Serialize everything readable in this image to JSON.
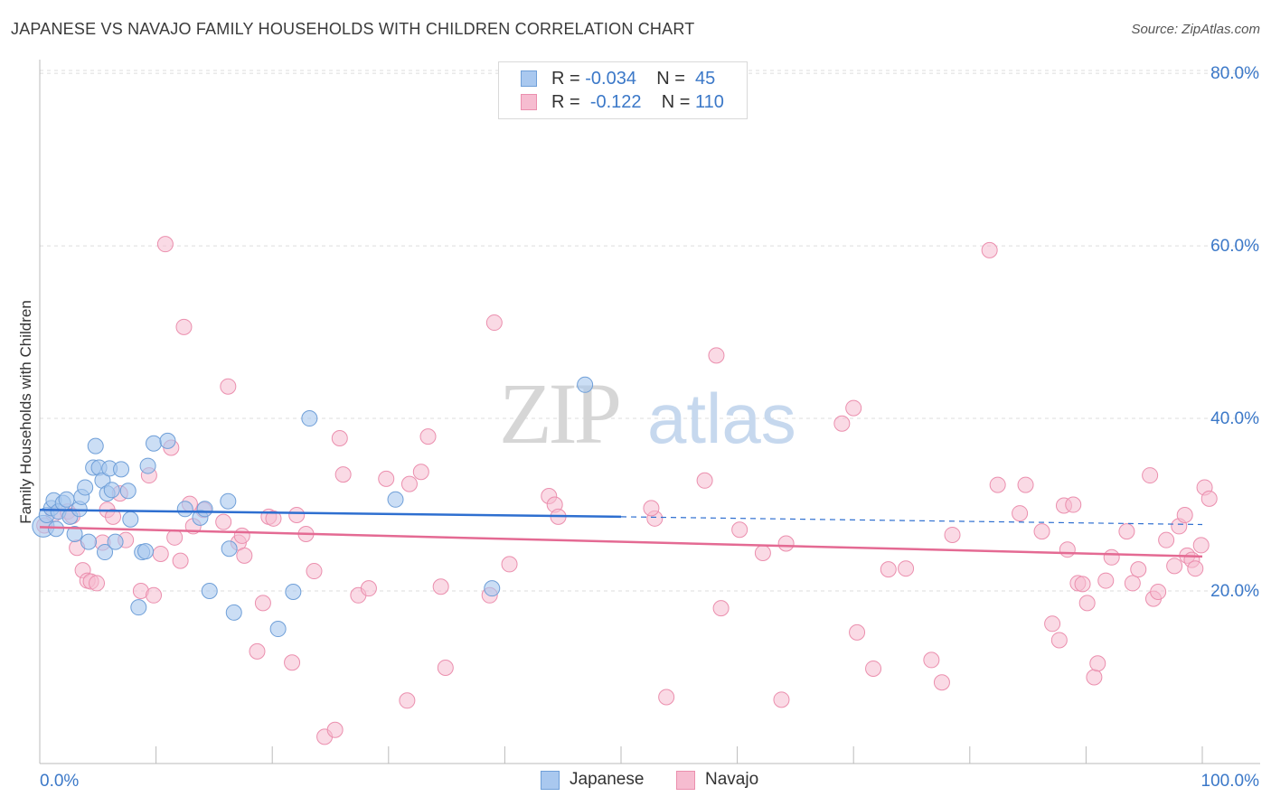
{
  "header": {
    "title": "JAPANESE VS NAVAJO FAMILY HOUSEHOLDS WITH CHILDREN CORRELATION CHART",
    "source": "Source: ZipAtlas.com"
  },
  "watermark": {
    "zip": "ZIP",
    "atlas": "atlas"
  },
  "legend": {
    "japanese": {
      "r_label": "R =",
      "r_value": "-0.034",
      "n_label": "N =",
      "n_value": "45"
    },
    "navajo": {
      "r_label": "R =",
      "r_value": "-0.122",
      "n_label": "N =",
      "n_value": "110"
    }
  },
  "colors": {
    "japanese_fill": "#a9c8ef",
    "japanese_stroke": "#6f9fd8",
    "japanese_line": "#2e6fd0",
    "navajo_fill": "#f6bcd0",
    "navajo_stroke": "#eb8fae",
    "navajo_line": "#e46a93",
    "axis_label": "#3b78c8",
    "grid": "#dddddd"
  },
  "chart_data": {
    "type": "scatter",
    "title": "JAPANESE VS NAVAJO FAMILY HOUSEHOLDS WITH CHILDREN CORRELATION CHART",
    "xlabel": "",
    "ylabel": "Family Households with Children",
    "xlim": [
      0,
      100
    ],
    "ylim": [
      0,
      82
    ],
    "x_tick_labels": [
      "0.0%",
      "100.0%"
    ],
    "y_ticks": [
      20,
      40,
      60,
      80
    ],
    "y_tick_labels": [
      "20.0%",
      "40.0%",
      "60.0%",
      "80.0%"
    ],
    "grid": true,
    "legend_position": "top-center",
    "series": [
      {
        "name": "Japanese",
        "r": -0.034,
        "n": 45,
        "trend": {
          "x": [
            0,
            50
          ],
          "y": [
            29.4,
            28.6
          ],
          "dashed_to": [
            100,
            27.7
          ]
        },
        "points": [
          [
            0.3,
            27.5
          ],
          [
            0.6,
            28.8
          ],
          [
            1.0,
            29.6
          ],
          [
            1.2,
            30.5
          ],
          [
            1.6,
            29.2
          ],
          [
            2.0,
            30.2
          ],
          [
            2.3,
            30.6
          ],
          [
            2.6,
            28.6
          ],
          [
            3.0,
            26.6
          ],
          [
            3.4,
            29.5
          ],
          [
            3.6,
            30.9
          ],
          [
            3.9,
            32.0
          ],
          [
            4.2,
            25.7
          ],
          [
            4.6,
            34.3
          ],
          [
            4.8,
            36.8
          ],
          [
            5.1,
            34.3
          ],
          [
            5.4,
            32.8
          ],
          [
            5.6,
            24.5
          ],
          [
            5.8,
            31.3
          ],
          [
            6.0,
            34.2
          ],
          [
            6.2,
            31.7
          ],
          [
            6.5,
            25.7
          ],
          [
            7.0,
            34.1
          ],
          [
            7.6,
            31.6
          ],
          [
            7.8,
            28.3
          ],
          [
            8.5,
            18.1
          ],
          [
            8.8,
            24.5
          ],
          [
            9.1,
            24.6
          ],
          [
            9.3,
            34.5
          ],
          [
            9.8,
            37.1
          ],
          [
            11.0,
            37.4
          ],
          [
            12.5,
            29.5
          ],
          [
            13.8,
            28.5
          ],
          [
            14.2,
            29.5
          ],
          [
            14.6,
            20.0
          ],
          [
            16.2,
            30.4
          ],
          [
            16.3,
            24.9
          ],
          [
            16.7,
            17.5
          ],
          [
            20.5,
            15.6
          ],
          [
            21.8,
            19.9
          ],
          [
            23.2,
            40.0
          ],
          [
            30.6,
            30.6
          ],
          [
            38.9,
            20.3
          ],
          [
            46.9,
            43.9
          ],
          [
            1.4,
            27.2
          ]
        ]
      },
      {
        "name": "Navajo",
        "r": -0.122,
        "n": 110,
        "trend": {
          "x": [
            0,
            100
          ],
          "y": [
            27.4,
            24.0
          ]
        },
        "points": [
          [
            0.4,
            27.6
          ],
          [
            1.2,
            28.9
          ],
          [
            2.4,
            29.2
          ],
          [
            2.8,
            28.7
          ],
          [
            3.2,
            25.0
          ],
          [
            3.7,
            22.4
          ],
          [
            4.1,
            21.2
          ],
          [
            4.4,
            21.1
          ],
          [
            4.9,
            20.9
          ],
          [
            5.4,
            25.6
          ],
          [
            5.8,
            29.4
          ],
          [
            6.3,
            28.6
          ],
          [
            6.9,
            31.3
          ],
          [
            7.4,
            25.9
          ],
          [
            8.7,
            20.0
          ],
          [
            9.4,
            33.4
          ],
          [
            9.8,
            19.5
          ],
          [
            10.4,
            24.3
          ],
          [
            10.8,
            60.2
          ],
          [
            11.3,
            36.6
          ],
          [
            11.6,
            26.2
          ],
          [
            12.1,
            23.5
          ],
          [
            12.4,
            50.6
          ],
          [
            12.9,
            30.1
          ],
          [
            13.2,
            27.5
          ],
          [
            14.1,
            29.4
          ],
          [
            15.8,
            28.0
          ],
          [
            16.2,
            43.7
          ],
          [
            17.1,
            25.6
          ],
          [
            17.4,
            26.4
          ],
          [
            17.6,
            24.1
          ],
          [
            18.7,
            13.0
          ],
          [
            19.2,
            18.6
          ],
          [
            19.7,
            28.6
          ],
          [
            20.1,
            28.4
          ],
          [
            21.7,
            11.7
          ],
          [
            22.1,
            28.8
          ],
          [
            22.9,
            26.6
          ],
          [
            23.6,
            22.3
          ],
          [
            24.5,
            3.1
          ],
          [
            25.4,
            3.9
          ],
          [
            25.8,
            37.7
          ],
          [
            26.1,
            33.5
          ],
          [
            27.4,
            19.5
          ],
          [
            28.3,
            20.3
          ],
          [
            29.8,
            33.0
          ],
          [
            31.6,
            7.3
          ],
          [
            31.8,
            32.4
          ],
          [
            32.8,
            33.8
          ],
          [
            33.4,
            37.9
          ],
          [
            34.5,
            20.5
          ],
          [
            34.9,
            11.1
          ],
          [
            38.7,
            19.5
          ],
          [
            39.1,
            51.1
          ],
          [
            40.4,
            23.1
          ],
          [
            43.8,
            31.0
          ],
          [
            44.3,
            30.0
          ],
          [
            44.6,
            28.6
          ],
          [
            52.9,
            28.4
          ],
          [
            52.6,
            29.6
          ],
          [
            53.9,
            7.7
          ],
          [
            57.2,
            32.8
          ],
          [
            58.2,
            47.3
          ],
          [
            58.6,
            18.0
          ],
          [
            60.2,
            27.1
          ],
          [
            62.2,
            24.4
          ],
          [
            63.8,
            7.4
          ],
          [
            64.2,
            25.5
          ],
          [
            69.0,
            39.4
          ],
          [
            70.0,
            41.2
          ],
          [
            70.3,
            15.2
          ],
          [
            71.7,
            11.0
          ],
          [
            73.0,
            22.5
          ],
          [
            74.5,
            22.6
          ],
          [
            76.7,
            12.0
          ],
          [
            77.6,
            9.4
          ],
          [
            78.5,
            26.5
          ],
          [
            81.7,
            59.5
          ],
          [
            82.4,
            32.3
          ],
          [
            84.3,
            29.0
          ],
          [
            84.8,
            32.3
          ],
          [
            86.2,
            26.9
          ],
          [
            87.1,
            16.2
          ],
          [
            87.7,
            14.3
          ],
          [
            88.1,
            29.9
          ],
          [
            88.4,
            24.8
          ],
          [
            88.9,
            30.0
          ],
          [
            89.3,
            20.9
          ],
          [
            89.7,
            20.8
          ],
          [
            90.1,
            18.6
          ],
          [
            90.7,
            10.0
          ],
          [
            91.0,
            11.6
          ],
          [
            91.7,
            21.2
          ],
          [
            92.2,
            23.9
          ],
          [
            93.5,
            26.9
          ],
          [
            94.0,
            20.9
          ],
          [
            94.5,
            22.5
          ],
          [
            95.5,
            33.4
          ],
          [
            95.8,
            19.1
          ],
          [
            96.2,
            19.9
          ],
          [
            96.9,
            25.9
          ],
          [
            97.6,
            22.9
          ],
          [
            98.0,
            27.5
          ],
          [
            98.5,
            28.8
          ],
          [
            98.7,
            24.1
          ],
          [
            99.1,
            23.6
          ],
          [
            99.4,
            22.6
          ],
          [
            99.9,
            25.3
          ],
          [
            100.2,
            32.0
          ],
          [
            100.6,
            30.7
          ]
        ]
      }
    ]
  },
  "bottom_legend": {
    "japanese": "Japanese",
    "navajo": "Navajo"
  }
}
